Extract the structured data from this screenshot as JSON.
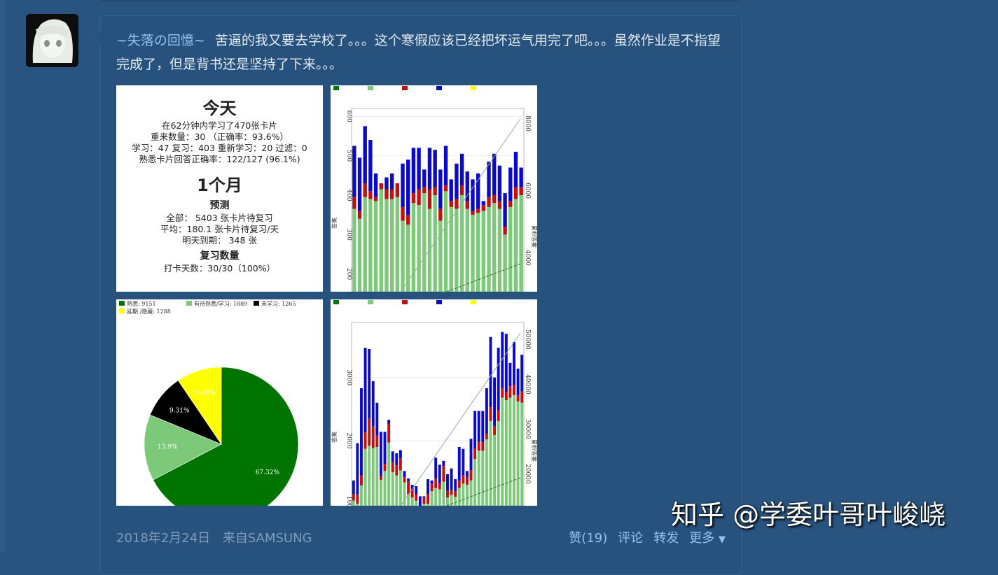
{
  "post": {
    "author": "~失落の回憶~",
    "text": "苦逼的我又要去学校了。。。这个寒假应该已经把坏运气用完了吧。。。虽然作业是不指望完成了，但是背书还是坚持了下来。。。",
    "date": "2018年2月24日",
    "source": "来自SAMSUNG",
    "actions": {
      "like": "赞(19)",
      "comment": "评论",
      "forward": "转发",
      "more": "更多"
    }
  },
  "watermark": "知乎 @学委叶哥叶峻峣",
  "stats_image": {
    "today_title": "今天",
    "line1": "在62分钟内学习了470张卡片",
    "line2": "重来数量：30 （正确率：93.6%）",
    "line3": "学习：47 复习：403 重新学习：20 过滤：0",
    "line4": "熟悉卡片回答正确率：122/127 (96.1%)",
    "month_title": "1个月",
    "forecast_title": "预测",
    "f1": "全部： 5403 张卡片待复习",
    "f2": "平均：180.1 张卡片待复习/天",
    "f3": "明天到期： 348 张",
    "review_title": "复习数量",
    "r1": "打卡天数：30/30（100%）"
  },
  "colors": {
    "mature": "#007400",
    "young": "#7dc97a",
    "relearn": "#c01010",
    "learn": "#0a0ac8",
    "cram": "#ffff00"
  },
  "chart_data": [
    {
      "type": "pie",
      "legend": [
        "熟悉: 9151",
        "有待熟悉/学习: 1889",
        "未学习: 1265",
        "延期 /隐藏: 1288"
      ],
      "slices": [
        {
          "label": "67.32%",
          "value": 67.32,
          "color": "#007400"
        },
        {
          "label": "13.9%",
          "value": 13.9,
          "color": "#7dc97a"
        },
        {
          "label": "9.31%",
          "value": 9.31,
          "color": "#000000"
        },
        {
          "label": "9.48%",
          "value": 9.48,
          "color": "#ffff00"
        }
      ]
    },
    {
      "type": "bar",
      "ylabel": "答案",
      "y2label": "累积答案",
      "yticks": [
        200,
        300,
        400,
        500,
        600
      ],
      "y2ticks": [
        "4000",
        "6000",
        "8000"
      ],
      "ylim": [
        155,
        620
      ],
      "green": [
        365,
        340,
        395,
        390,
        385,
        415,
        390,
        390,
        395,
        335,
        325,
        380,
        375,
        405,
        365,
        400,
        335,
        410,
        370,
        365,
        400,
        365,
        350,
        355,
        360,
        370,
        380,
        365,
        300,
        370,
        390,
        400
      ],
      "red_top": [
        395,
        360,
        430,
        410,
        395,
        430,
        415,
        415,
        430,
        370,
        350,
        405,
        415,
        420,
        415,
        420,
        365,
        425,
        385,
        390,
        425,
        385,
        360,
        365,
        375,
        395,
        400,
        385,
        320,
        385,
        420,
        420
      ],
      "total": [
        525,
        495,
        575,
        540,
        455,
        430,
        445,
        455,
        430,
        480,
        490,
        520,
        520,
        465,
        520,
        515,
        465,
        525,
        440,
        480,
        505,
        460,
        440,
        455,
        385,
        485,
        505,
        475,
        405,
        470,
        510,
        470
      ]
    },
    {
      "type": "bar",
      "ylabel": "答案",
      "y2label": "累积答案",
      "yticks": [
        1000,
        2000,
        3000
      ],
      "y2ticks": [
        "20000",
        "30000",
        "40000",
        "50000"
      ],
      "ylim": [
        970,
        3870
      ],
      "green": [
        1050,
        1000,
        1290,
        1870,
        1920,
        1880,
        1900,
        1380,
        1520,
        1970,
        1500,
        1450,
        1530,
        1340,
        1150,
        1100,
        1050,
        0,
        1000,
        1000,
        1200,
        1250,
        1230,
        1350,
        1100,
        1140,
        1110,
        1250,
        1320,
        1300,
        1370,
        1710,
        1840,
        1840,
        2020,
        2310,
        2090,
        2310,
        2680,
        2640,
        2680,
        2720,
        2620,
        2600
      ],
      "red_top": [
        1150,
        1150,
        1450,
        2130,
        2350,
        2230,
        2080,
        1440,
        1630,
        2270,
        1660,
        1610,
        1720,
        1420,
        1360,
        1230,
        1150,
        0,
        1100,
        1150,
        1320,
        1400,
        1330,
        1600,
        1210,
        1220,
        1200,
        1370,
        1450,
        1420,
        1530,
        1870,
        1980,
        1980,
        2110,
        2530,
        2230,
        2480,
        2830,
        2770,
        2860,
        2880,
        2720,
        2780
      ],
      "total": [
        1370,
        1960,
        2830,
        3470,
        3450,
        2940,
        2600,
        2140,
        2140,
        2330,
        1830,
        1800,
        1850,
        1520,
        1400,
        1300,
        1280,
        1120,
        1120,
        1390,
        1370,
        1730,
        1620,
        1680,
        1470,
        1560,
        1390,
        1900,
        1870,
        1520,
        2030,
        2470,
        2470,
        2470,
        2830,
        3640,
        3000,
        3470,
        3720,
        3690,
        3230,
        3560,
        3140,
        3360
      ]
    }
  ]
}
